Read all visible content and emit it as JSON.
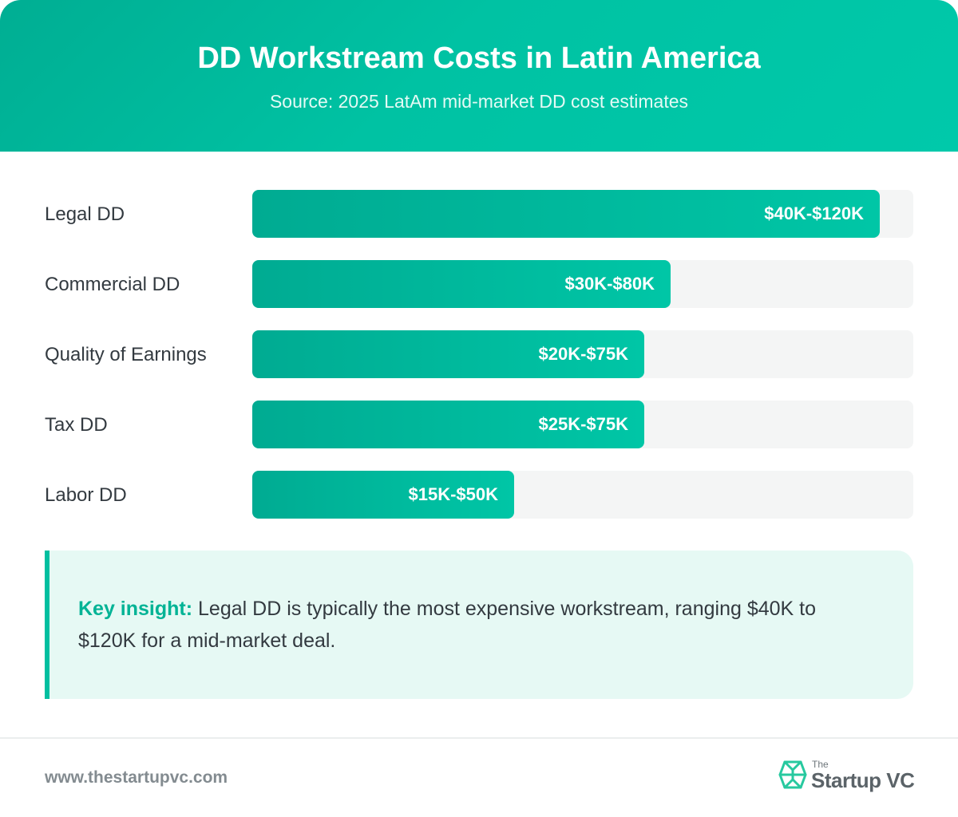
{
  "header": {
    "title": "DD Workstream Costs in Latin America",
    "subtitle": "Source: 2025 LatAm mid-market DD cost estimates"
  },
  "chart_data": {
    "type": "bar",
    "orientation": "horizontal",
    "title": "DD Workstream Costs in Latin America",
    "subtitle": "Source: 2025 LatAm mid-market DD cost estimates",
    "unit": "USD thousands",
    "categories": [
      "Legal DD",
      "Commercial DD",
      "Quality of Earnings",
      "Tax DD",
      "Labor DD"
    ],
    "series": [
      {
        "low": [
          40,
          30,
          20,
          25,
          15
        ],
        "high": [
          120,
          80,
          75,
          75,
          50
        ],
        "labels": [
          "$40K-$120K",
          "$30K-$80K",
          "$20K-$75K",
          "$25K-$75K",
          "$15K-$50K"
        ]
      }
    ],
    "xlim": [
      0,
      126.4
    ],
    "grid": false,
    "legend": "none",
    "colors": {
      "bar_start": "#00ab92",
      "bar_end": "#00c6a6",
      "track": "#f4f5f5"
    }
  },
  "insight": {
    "label": "Key insight:",
    "text": " Legal DD is typically the most expensive workstream, ranging $40K to $120K for a mid-market deal."
  },
  "footer": {
    "url": "www.thestartupvc.com",
    "logo_small": "The",
    "logo_name": "Startup VC"
  },
  "icons": {
    "logo": "startupvc-logo-icon"
  }
}
